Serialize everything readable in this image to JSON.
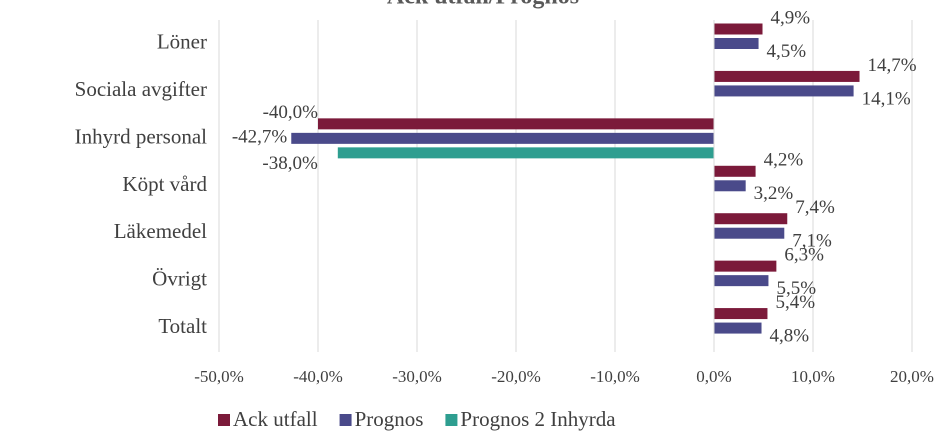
{
  "chart_data": {
    "type": "hbar",
    "title": "Ack utfall/Prognos",
    "categories": [
      "Löner",
      "Sociala avgifter",
      "Inhyrd personal",
      "Köpt vård",
      "Läkemedel",
      "Övrigt",
      "Totalt"
    ],
    "series": [
      {
        "name": "Ack utfall",
        "color": "#7b1a3a",
        "values": [
          4.9,
          14.7,
          -40.0,
          4.2,
          7.4,
          6.3,
          5.4
        ],
        "value_labels": [
          "4,9%",
          "14,7%",
          "-40,0%",
          "4,2%",
          "7,4%",
          "6,3%",
          "5,4%"
        ]
      },
      {
        "name": "Prognos",
        "color": "#4a4a8a",
        "values": [
          4.5,
          14.1,
          -42.7,
          3.2,
          7.1,
          5.5,
          4.8
        ],
        "value_labels": [
          "4,5%",
          "14,1%",
          "-42,7%",
          "3,2%",
          "7,1%",
          "5,5%",
          "4,8%"
        ]
      },
      {
        "name": "Prognos 2 Inhyrda",
        "color": "#2e9e90",
        "values": [
          null,
          null,
          -38.0,
          null,
          null,
          null,
          null
        ],
        "value_labels": [
          null,
          null,
          "-38,0%",
          null,
          null,
          null,
          null
        ]
      }
    ],
    "xlim": [
      -50,
      20
    ],
    "xticks": [
      {
        "value": -50,
        "label": "-50,0%"
      },
      {
        "value": -40,
        "label": "-40,0%"
      },
      {
        "value": -30,
        "label": "-30,0%"
      },
      {
        "value": -20,
        "label": "-20,0%"
      },
      {
        "value": -10,
        "label": "-10,0%"
      },
      {
        "value": 0,
        "label": "0,0%"
      },
      {
        "value": 10,
        "label": "10,0%"
      },
      {
        "value": 20,
        "label": "20,0%"
      }
    ],
    "grid": true,
    "legend": "bottom"
  }
}
